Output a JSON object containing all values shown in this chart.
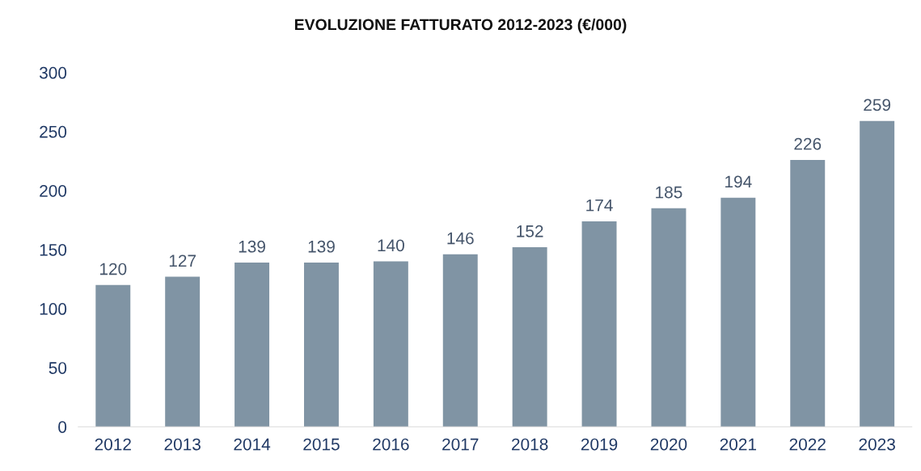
{
  "chart_data": {
    "type": "bar",
    "title": "EVOLUZIONE FATTURATO 2012-2023 (€/000)",
    "categories": [
      "2012",
      "2013",
      "2014",
      "2015",
      "2016",
      "2017",
      "2018",
      "2019",
      "2020",
      "2021",
      "2022",
      "2023"
    ],
    "values": [
      120,
      127,
      139,
      139,
      140,
      146,
      152,
      174,
      185,
      194,
      226,
      259
    ],
    "color": "#8094a4",
    "ylim": [
      0,
      300
    ],
    "yticks": [
      0,
      50,
      100,
      150,
      200,
      250,
      300
    ],
    "data_labels": true,
    "grid": false,
    "legend": false
  }
}
